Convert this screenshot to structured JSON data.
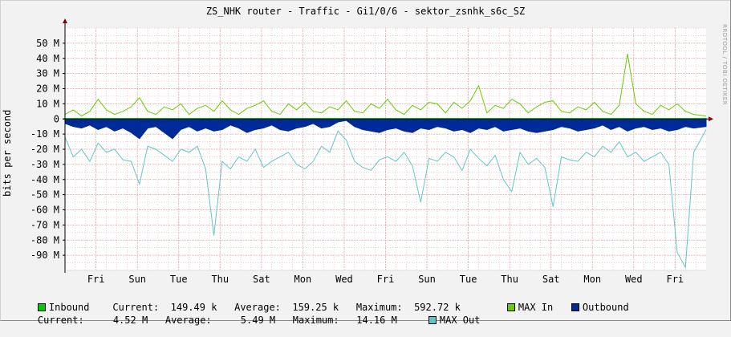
{
  "title": "ZS_NHK router - Traffic - Gi1/0/6 - sektor_zsnhk_s6c_SZ",
  "watermark": "RRDTOOL / TOBI OETIKER",
  "colors": {
    "inbound": "#00cc00",
    "max_in": "#66cc00",
    "outbound": "#002a97",
    "max_out": "#5fc7c7",
    "grid": "#e8a0a0",
    "axis": "#000000"
  },
  "legend": {
    "inbound_label": "Inbound",
    "inbound_stats": "Current:  149.49 k   Average:  159.25 k   Maximum:  592.72 k",
    "max_in_label": "MAX In",
    "outbound_label": "Outbound",
    "outbound_stats": "Current:     4.52 M   Average:     5.49 M   Maximum:   14.16 M",
    "max_out_label": "MAX Out"
  },
  "chart_data": {
    "type": "area",
    "title": "ZS_NHK router - Traffic - Gi1/0/6 - sektor_zsnhk_s6c_SZ",
    "ylabel": "bits per second",
    "xlabel": "",
    "y_tick_labels": [
      "50 M",
      "40 M",
      "30 M",
      "20 M",
      "10 M",
      "0",
      "-10 M",
      "-20 M",
      "-30 M",
      "-40 M",
      "-50 M",
      "-60 M",
      "-70 M",
      "-80 M",
      "-90 M"
    ],
    "y_ticks": [
      50,
      40,
      30,
      20,
      10,
      0,
      -10,
      -20,
      -30,
      -40,
      -50,
      -60,
      -70,
      -80,
      -90
    ],
    "ylim": [
      -100,
      60
    ],
    "x_range_days": [
      0,
      15.5
    ],
    "x_tick_labels": [
      "Fri",
      "Sun",
      "Tue",
      "Thu",
      "Sat",
      "Mon",
      "Wed",
      "Fri",
      "Sun",
      "Tue",
      "Thu",
      "Sat",
      "Mon",
      "Wed",
      "Fri"
    ],
    "x_ticks_days": [
      0.75,
      1.75,
      2.75,
      3.75,
      4.75,
      5.75,
      6.75,
      7.75,
      8.75,
      9.75,
      10.75,
      11.75,
      12.75,
      13.75,
      14.75
    ],
    "grid": true,
    "legend_position": "bottom",
    "series": [
      {
        "name": "MAX In",
        "description": "upper outline, positive, in M bits per second",
        "points_days": [
          [
            0,
            3
          ],
          [
            0.2,
            6
          ],
          [
            0.4,
            2
          ],
          [
            0.6,
            5
          ],
          [
            0.8,
            13
          ],
          [
            1,
            6
          ],
          [
            1.2,
            3
          ],
          [
            1.4,
            5
          ],
          [
            1.6,
            8
          ],
          [
            1.8,
            14
          ],
          [
            2,
            5
          ],
          [
            2.2,
            3
          ],
          [
            2.4,
            8
          ],
          [
            2.6,
            6
          ],
          [
            2.8,
            10
          ],
          [
            3,
            3
          ],
          [
            3.2,
            7
          ],
          [
            3.4,
            9
          ],
          [
            3.6,
            5
          ],
          [
            3.8,
            12
          ],
          [
            4,
            6
          ],
          [
            4.2,
            3
          ],
          [
            4.4,
            7
          ],
          [
            4.6,
            9
          ],
          [
            4.8,
            12
          ],
          [
            5,
            5
          ],
          [
            5.2,
            3
          ],
          [
            5.4,
            10
          ],
          [
            5.6,
            6
          ],
          [
            5.8,
            11
          ],
          [
            6,
            5
          ],
          [
            6.2,
            4
          ],
          [
            6.4,
            8
          ],
          [
            6.6,
            6
          ],
          [
            6.8,
            12
          ],
          [
            7,
            5
          ],
          [
            7.2,
            4
          ],
          [
            7.4,
            10
          ],
          [
            7.6,
            7
          ],
          [
            7.8,
            13
          ],
          [
            8,
            6
          ],
          [
            8.2,
            3
          ],
          [
            8.4,
            9
          ],
          [
            8.6,
            6
          ],
          [
            8.8,
            11
          ],
          [
            9,
            10
          ],
          [
            9.2,
            4
          ],
          [
            9.4,
            11
          ],
          [
            9.6,
            7
          ],
          [
            9.8,
            12
          ],
          [
            10,
            22
          ],
          [
            10.2,
            4
          ],
          [
            10.4,
            9
          ],
          [
            10.6,
            7
          ],
          [
            10.8,
            13
          ],
          [
            11,
            10
          ],
          [
            11.2,
            4
          ],
          [
            11.4,
            8
          ],
          [
            11.6,
            11
          ],
          [
            11.8,
            12
          ],
          [
            12,
            5
          ],
          [
            12.2,
            4
          ],
          [
            12.4,
            8
          ],
          [
            12.6,
            6
          ],
          [
            12.8,
            11
          ],
          [
            13,
            5
          ],
          [
            13.2,
            3
          ],
          [
            13.4,
            9
          ],
          [
            13.6,
            43
          ],
          [
            13.8,
            10
          ],
          [
            14,
            5
          ],
          [
            14.2,
            3
          ],
          [
            14.4,
            9
          ],
          [
            14.6,
            6
          ],
          [
            14.8,
            10
          ],
          [
            15,
            5
          ],
          [
            15.2,
            3
          ],
          [
            15.5,
            2
          ]
        ]
      },
      {
        "name": "Inbound",
        "description": "thin positive area, in M bits per second",
        "points_days": [
          [
            0,
            0.2
          ],
          [
            15.5,
            0.2
          ]
        ]
      },
      {
        "name": "Outbound",
        "description": "negative area, in M bits per second",
        "points_days": [
          [
            0,
            -3
          ],
          [
            0.2,
            -5
          ],
          [
            0.4,
            -6
          ],
          [
            0.6,
            -4
          ],
          [
            0.8,
            -7
          ],
          [
            1,
            -5
          ],
          [
            1.2,
            -8
          ],
          [
            1.4,
            -6
          ],
          [
            1.6,
            -9
          ],
          [
            1.8,
            -13
          ],
          [
            2,
            -6
          ],
          [
            2.2,
            -5
          ],
          [
            2.4,
            -9
          ],
          [
            2.6,
            -13
          ],
          [
            2.8,
            -7
          ],
          [
            3,
            -5
          ],
          [
            3.2,
            -8
          ],
          [
            3.4,
            -6
          ],
          [
            3.6,
            -8
          ],
          [
            3.8,
            -7
          ],
          [
            4,
            -4
          ],
          [
            4.2,
            -6
          ],
          [
            4.4,
            -9
          ],
          [
            4.6,
            -7
          ],
          [
            4.8,
            -6
          ],
          [
            5,
            -4
          ],
          [
            5.2,
            -7
          ],
          [
            5.4,
            -8
          ],
          [
            5.6,
            -6
          ],
          [
            5.8,
            -5
          ],
          [
            6,
            -3
          ],
          [
            6.2,
            -6
          ],
          [
            6.4,
            -5
          ],
          [
            6.6,
            -2
          ],
          [
            6.8,
            -1
          ],
          [
            7,
            -5
          ],
          [
            7.2,
            -7
          ],
          [
            7.4,
            -8
          ],
          [
            7.6,
            -9
          ],
          [
            7.8,
            -7
          ],
          [
            8,
            -6
          ],
          [
            8.2,
            -8
          ],
          [
            8.4,
            -9
          ],
          [
            8.6,
            -6
          ],
          [
            8.8,
            -7
          ],
          [
            9,
            -5
          ],
          [
            9.2,
            -6
          ],
          [
            9.4,
            -8
          ],
          [
            9.6,
            -7
          ],
          [
            9.8,
            -9
          ],
          [
            10,
            -6
          ],
          [
            10.2,
            -7
          ],
          [
            10.4,
            -5
          ],
          [
            10.6,
            -8
          ],
          [
            10.8,
            -7
          ],
          [
            11,
            -6
          ],
          [
            11.2,
            -8
          ],
          [
            11.4,
            -9
          ],
          [
            11.6,
            -8
          ],
          [
            11.8,
            -7
          ],
          [
            12,
            -5
          ],
          [
            12.2,
            -6
          ],
          [
            12.4,
            -8
          ],
          [
            12.6,
            -7
          ],
          [
            12.8,
            -6
          ],
          [
            13,
            -4
          ],
          [
            13.2,
            -7
          ],
          [
            13.4,
            -5
          ],
          [
            13.6,
            -8
          ],
          [
            13.8,
            -6
          ],
          [
            14,
            -5
          ],
          [
            14.2,
            -7
          ],
          [
            14.4,
            -6
          ],
          [
            14.6,
            -8
          ],
          [
            14.8,
            -7
          ],
          [
            15,
            -5
          ],
          [
            15.2,
            -6
          ],
          [
            15.5,
            -5
          ]
        ]
      },
      {
        "name": "MAX Out",
        "description": "lower outline, negative, in M bits per second",
        "points_days": [
          [
            0,
            -12
          ],
          [
            0.2,
            -25
          ],
          [
            0.4,
            -20
          ],
          [
            0.6,
            -28
          ],
          [
            0.8,
            -16
          ],
          [
            1,
            -22
          ],
          [
            1.2,
            -20
          ],
          [
            1.4,
            -27
          ],
          [
            1.6,
            -28
          ],
          [
            1.8,
            -43
          ],
          [
            2,
            -18
          ],
          [
            2.2,
            -20
          ],
          [
            2.4,
            -24
          ],
          [
            2.6,
            -28
          ],
          [
            2.8,
            -20
          ],
          [
            3,
            -22
          ],
          [
            3.2,
            -18
          ],
          [
            3.4,
            -33
          ],
          [
            3.6,
            -77
          ],
          [
            3.8,
            -28
          ],
          [
            4,
            -33
          ],
          [
            4.2,
            -25
          ],
          [
            4.4,
            -28
          ],
          [
            4.6,
            -20
          ],
          [
            4.8,
            -32
          ],
          [
            5,
            -28
          ],
          [
            5.2,
            -25
          ],
          [
            5.4,
            -22
          ],
          [
            5.6,
            -30
          ],
          [
            5.8,
            -33
          ],
          [
            6,
            -28
          ],
          [
            6.2,
            -18
          ],
          [
            6.4,
            -22
          ],
          [
            6.6,
            -8
          ],
          [
            6.8,
            -14
          ],
          [
            7,
            -28
          ],
          [
            7.2,
            -32
          ],
          [
            7.4,
            -34
          ],
          [
            7.6,
            -27
          ],
          [
            7.8,
            -25
          ],
          [
            8,
            -28
          ],
          [
            8.2,
            -22
          ],
          [
            8.4,
            -31
          ],
          [
            8.6,
            -55
          ],
          [
            8.8,
            -26
          ],
          [
            9,
            -28
          ],
          [
            9.2,
            -22
          ],
          [
            9.4,
            -25
          ],
          [
            9.6,
            -34
          ],
          [
            9.8,
            -20
          ],
          [
            10,
            -26
          ],
          [
            10.2,
            -31
          ],
          [
            10.4,
            -24
          ],
          [
            10.6,
            -40
          ],
          [
            10.8,
            -48
          ],
          [
            11,
            -22
          ],
          [
            11.2,
            -30
          ],
          [
            11.4,
            -26
          ],
          [
            11.6,
            -32
          ],
          [
            11.8,
            -58
          ],
          [
            12,
            -25
          ],
          [
            12.2,
            -27
          ],
          [
            12.4,
            -28
          ],
          [
            12.6,
            -22
          ],
          [
            12.8,
            -25
          ],
          [
            13,
            -18
          ],
          [
            13.2,
            -22
          ],
          [
            13.4,
            -15
          ],
          [
            13.6,
            -25
          ],
          [
            13.8,
            -22
          ],
          [
            14,
            -28
          ],
          [
            14.2,
            -25
          ],
          [
            14.4,
            -22
          ],
          [
            14.6,
            -30
          ],
          [
            14.8,
            -88
          ],
          [
            15,
            -98
          ],
          [
            15.2,
            -22
          ],
          [
            15.5,
            -7
          ]
        ]
      }
    ]
  }
}
